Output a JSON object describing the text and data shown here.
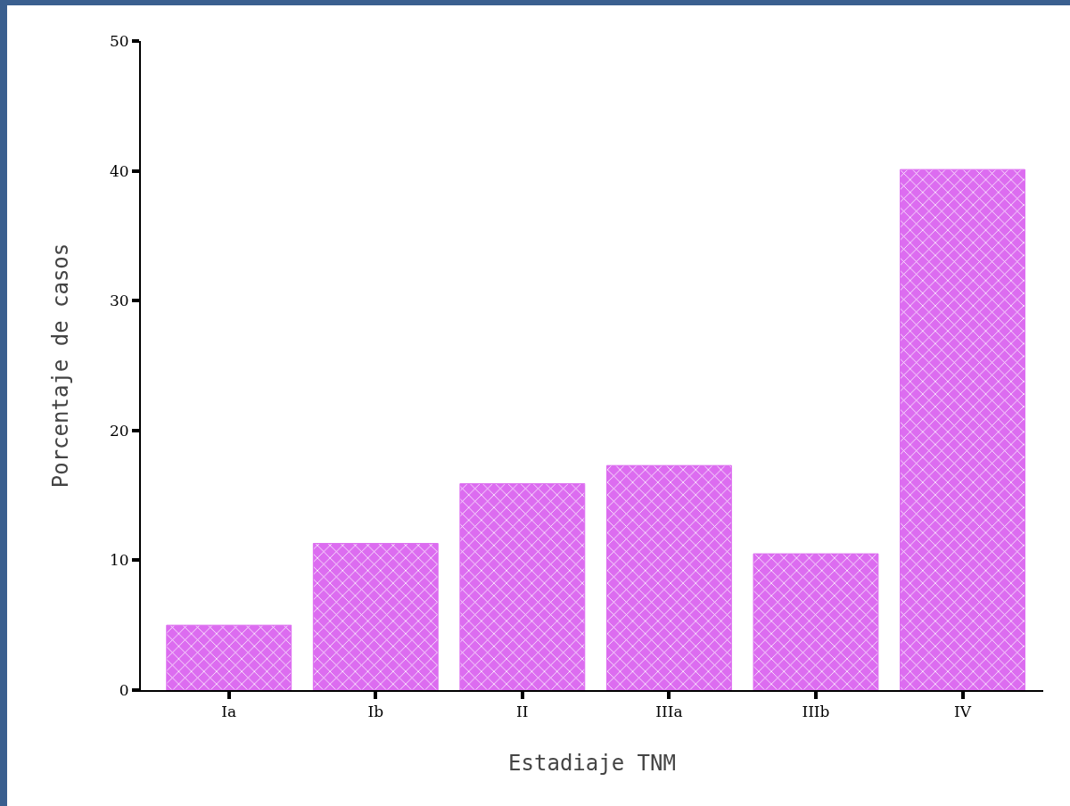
{
  "chart_data": {
    "type": "bar",
    "xlabel": "Estadiaje TNM",
    "ylabel": "Porcentaje de casos",
    "categories": [
      "Ia",
      "Ib",
      "II",
      "IIIa",
      "IIIb",
      "IV"
    ],
    "values": [
      5.0,
      11.3,
      15.9,
      17.3,
      10.5,
      40.1
    ],
    "color": "#dc6cf0",
    "ylim": [
      0,
      50
    ],
    "yticks": [
      0,
      10,
      20,
      30,
      40,
      50
    ],
    "grid": false
  }
}
